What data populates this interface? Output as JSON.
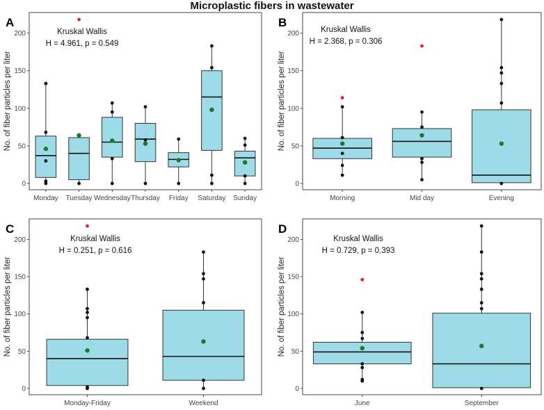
{
  "title": "Microplastic fibers in wastewater",
  "colors": {
    "box_fill": "#9edbe8",
    "box_stroke": "#333333",
    "outlier": "#e8201c",
    "mean": "#1a7a2c",
    "point": "#111111"
  },
  "chart_data": [
    {
      "panel": "A",
      "type": "box",
      "ylabel": "No. of fiber particles per liter",
      "ylim": [
        0,
        220
      ],
      "yticks": [
        0,
        50,
        100,
        150,
        200
      ],
      "annotation": [
        "Kruskal Wallis",
        "H = 4.961, p = 0.549"
      ],
      "categories": [
        "Monday",
        "Tuesday",
        "Wednesday",
        "Thursday",
        "Friday",
        "Saturday",
        "Sunday"
      ],
      "boxes": [
        {
          "q1": 8,
          "median": 37,
          "q3": 63,
          "whisker_low": 0,
          "whisker_high": 133,
          "mean": 46,
          "points": [
            0,
            3,
            30,
            68,
            133
          ],
          "outliers": []
        },
        {
          "q1": 5,
          "median": 40,
          "q3": 61,
          "whisker_low": 0,
          "whisker_high": 67,
          "mean": 64,
          "points": [
            0,
            64
          ],
          "outliers": [
            218
          ]
        },
        {
          "q1": 35,
          "median": 55,
          "q3": 88,
          "whisker_low": 0,
          "whisker_high": 107,
          "mean": 57,
          "points": [
            0,
            33,
            95,
            107
          ],
          "outliers": []
        },
        {
          "q1": 29,
          "median": 59,
          "q3": 80,
          "whisker_low": 0,
          "whisker_high": 102,
          "mean": 53,
          "points": [
            0,
            58,
            102
          ],
          "outliers": []
        },
        {
          "q1": 22,
          "median": 32,
          "q3": 41,
          "whisker_low": 0,
          "whisker_high": 59,
          "mean": 31,
          "points": [
            0,
            59
          ],
          "outliers": []
        },
        {
          "q1": 44,
          "median": 115,
          "q3": 150,
          "whisker_low": 0,
          "whisker_high": 183,
          "mean": 98,
          "points": [
            0,
            11,
            154,
            183
          ],
          "outliers": []
        },
        {
          "q1": 10,
          "median": 34,
          "q3": 43,
          "whisker_low": 0,
          "whisker_high": 60,
          "mean": 28,
          "points": [
            0,
            10,
            51,
            60
          ],
          "outliers": []
        }
      ]
    },
    {
      "panel": "B",
      "type": "box",
      "ylabel": "No. of fiber particles per liter",
      "ylim": [
        0,
        220
      ],
      "yticks": [
        0,
        50,
        100,
        150,
        200
      ],
      "annotation": [
        "Kruskal Wallis",
        "H = 2.368, p = 0.306"
      ],
      "categories": [
        "Morning",
        "Mid day",
        "Evening"
      ],
      "boxes": [
        {
          "q1": 33,
          "median": 47,
          "q3": 60,
          "whisker_low": 11,
          "whisker_high": 102,
          "mean": 53,
          "points": [
            11,
            24,
            40,
            61,
            102
          ],
          "outliers": [
            114
          ]
        },
        {
          "q1": 35,
          "median": 56,
          "q3": 73,
          "whisker_low": 5,
          "whisker_high": 95,
          "mean": 64,
          "points": [
            5,
            28,
            33,
            75,
            95
          ],
          "outliers": [
            183
          ]
        },
        {
          "q1": 1,
          "median": 11,
          "q3": 98,
          "whisker_low": 0,
          "whisker_high": 218,
          "mean": 53,
          "points": [
            0,
            107,
            133,
            147,
            154,
            218
          ],
          "outliers": []
        }
      ]
    },
    {
      "panel": "C",
      "type": "box",
      "ylabel": "No. of fiber particles per liter",
      "ylim": [
        0,
        220
      ],
      "yticks": [
        0,
        50,
        100,
        150,
        200
      ],
      "annotation": [
        "Kruskal Wallis",
        "H = 0.251, p = 0.616"
      ],
      "categories": [
        "Monday-Friday",
        "Weekend"
      ],
      "boxes": [
        {
          "q1": 4,
          "median": 40,
          "q3": 66,
          "whisker_low": 0,
          "whisker_high": 133,
          "mean": 51,
          "points": [
            0,
            2,
            68,
            95,
            102,
            107,
            133
          ],
          "outliers": [
            218
          ]
        },
        {
          "q1": 11,
          "median": 43,
          "q3": 105,
          "whisker_low": 0,
          "whisker_high": 183,
          "mean": 63,
          "points": [
            0,
            11,
            115,
            147,
            154,
            183
          ],
          "outliers": []
        }
      ]
    },
    {
      "panel": "D",
      "type": "box",
      "ylabel": "No. of fiber particles per liter",
      "ylim": [
        0,
        220
      ],
      "yticks": [
        0,
        50,
        100,
        150,
        200
      ],
      "annotation": [
        "Kruskal Wallis",
        "H = 0.729, p = 0.393"
      ],
      "categories": [
        "June",
        "September"
      ],
      "boxes": [
        {
          "q1": 33,
          "median": 49,
          "q3": 62,
          "whisker_low": 10,
          "whisker_high": 102,
          "mean": 54,
          "points": [
            10,
            12,
            28,
            33,
            67,
            75,
            102
          ],
          "outliers": [
            146
          ]
        },
        {
          "q1": 1,
          "median": 33,
          "q3": 101,
          "whisker_low": 0,
          "whisker_high": 218,
          "mean": 57,
          "points": [
            0,
            107,
            115,
            133,
            147,
            154,
            183,
            218
          ],
          "outliers": []
        }
      ]
    }
  ]
}
